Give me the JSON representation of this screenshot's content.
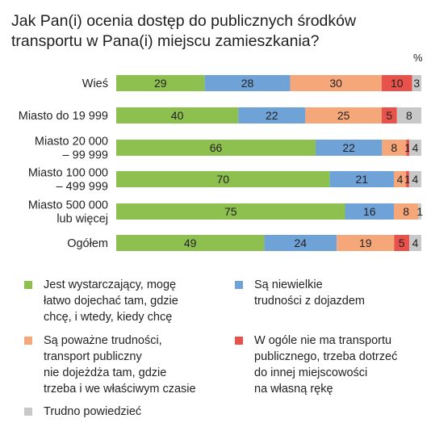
{
  "title": "Jak Pan(i) ocenia dostęp do publicznych środków transportu w Pana(i) miejscu zamieszkania?",
  "unit_label": "%",
  "colors": {
    "green": "#8dc04f",
    "blue": "#6fa3d8",
    "orange": "#f5a77a",
    "red": "#e8524a",
    "gray": "#c8c8c8"
  },
  "chart_data": {
    "type": "bar",
    "orientation": "horizontal",
    "stacked": true,
    "categories": [
      "Wieś",
      "Miasto do 19 999",
      "Miasto 20 000\n– 99 999",
      "Miasto 100 000\n– 499 999",
      "Miasto 500 000\nlub więcej",
      "Ogółem"
    ],
    "series": [
      {
        "name": "Jest wystarczający, mogę łatwo dojechać tam, gdzie chcę, i wtedy, kiedy chcę",
        "color": "#8dc04f",
        "values": [
          29,
          40,
          66,
          70,
          75,
          49
        ]
      },
      {
        "name": "Są niewielkie trudności z dojazdem",
        "color": "#6fa3d8",
        "values": [
          28,
          22,
          22,
          21,
          16,
          24
        ]
      },
      {
        "name": "Są poważne trudności, transport publiczny nie dojeżdża tam, gdzie trzeba i we właściwym czasie",
        "color": "#f5a77a",
        "values": [
          30,
          25,
          8,
          4,
          8,
          19
        ]
      },
      {
        "name": "W ogóle nie ma transportu publicznego, trzeba dotrzeć do innej miejscowości na własną rękę",
        "color": "#e8524a",
        "values": [
          10,
          5,
          1,
          1,
          0,
          5
        ]
      },
      {
        "name": "Trudno powiedzieć",
        "color": "#c8c8c8",
        "values": [
          3,
          8,
          4,
          4,
          1,
          4
        ]
      }
    ],
    "legend_position": "bottom",
    "grid": false
  },
  "legend": [
    {
      "text": "Jest wystarczający, mogę\nłatwo dojechać tam, gdzie\nchcę, i wtedy, kiedy chcę",
      "color": "#8dc04f"
    },
    {
      "text": "Są niewielkie\ntrudności z dojazdem",
      "color": "#6fa3d8"
    },
    {
      "text": "Są poważne trudności,\ntransport publiczny\nnie dojeżdża tam, gdzie\ntrzeba i we właściwym czasie",
      "color": "#f5a77a"
    },
    {
      "text": "W ogóle nie ma transportu\npublicznego, trzeba dotrzeć\ndo innej miejscowości\nna własną rękę",
      "color": "#e8524a"
    },
    {
      "text": "Trudno powiedzieć",
      "color": "#c8c8c8"
    }
  ]
}
